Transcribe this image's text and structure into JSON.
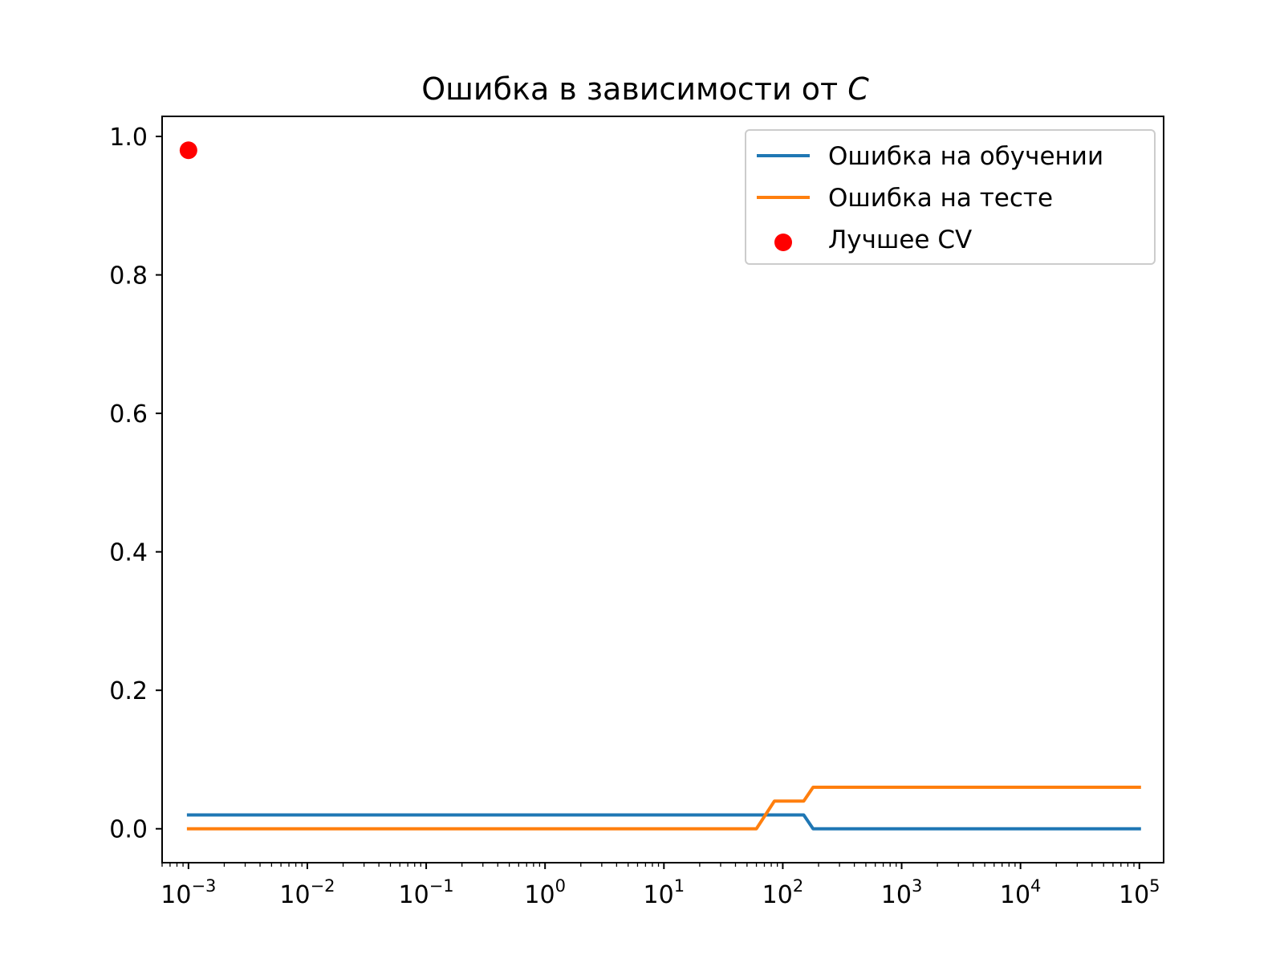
{
  "chart_data": {
    "type": "line",
    "title": "Ошибка в зависимости от ",
    "title_var": "C",
    "xlabel": "",
    "ylabel": "",
    "xscale": "log",
    "xlim": [
      0.0006,
      160000
    ],
    "ylim": [
      -0.049,
      1.029
    ],
    "x_ticks": [
      {
        "value": 0.001,
        "base": "10",
        "exp": "−3"
      },
      {
        "value": 0.01,
        "base": "10",
        "exp": "−2"
      },
      {
        "value": 0.1,
        "base": "10",
        "exp": "−1"
      },
      {
        "value": 1,
        "base": "10",
        "exp": "0"
      },
      {
        "value": 10,
        "base": "10",
        "exp": "1"
      },
      {
        "value": 100,
        "base": "10",
        "exp": "2"
      },
      {
        "value": 1000,
        "base": "10",
        "exp": "3"
      },
      {
        "value": 10000,
        "base": "10",
        "exp": "4"
      },
      {
        "value": 100000,
        "base": "10",
        "exp": "5"
      }
    ],
    "y_ticks": [
      {
        "value": 0.0,
        "label": "0.0"
      },
      {
        "value": 0.2,
        "label": "0.2"
      },
      {
        "value": 0.4,
        "label": "0.4"
      },
      {
        "value": 0.6,
        "label": "0.6"
      },
      {
        "value": 0.8,
        "label": "0.8"
      },
      {
        "value": 1.0,
        "label": "1.0"
      }
    ],
    "grid": false,
    "legend_position": "top-right",
    "series": [
      {
        "name": "Ошибка на обучении",
        "kind": "line",
        "color": "#1f77b4",
        "x": [
          0.001,
          60,
          85,
          150,
          180,
          100000
        ],
        "y": [
          0.02,
          0.02,
          0.02,
          0.02,
          0.0,
          0.0
        ]
      },
      {
        "name": "Ошибка на тесте",
        "kind": "line",
        "color": "#ff7f0e",
        "x": [
          0.001,
          60,
          85,
          150,
          180,
          100000
        ],
        "y": [
          0.0,
          0.0,
          0.04,
          0.04,
          0.06,
          0.06
        ]
      },
      {
        "name": "Лучшее CV",
        "kind": "scatter",
        "color": "#ff0000",
        "x": [
          0.001
        ],
        "y": [
          0.98
        ]
      }
    ]
  }
}
